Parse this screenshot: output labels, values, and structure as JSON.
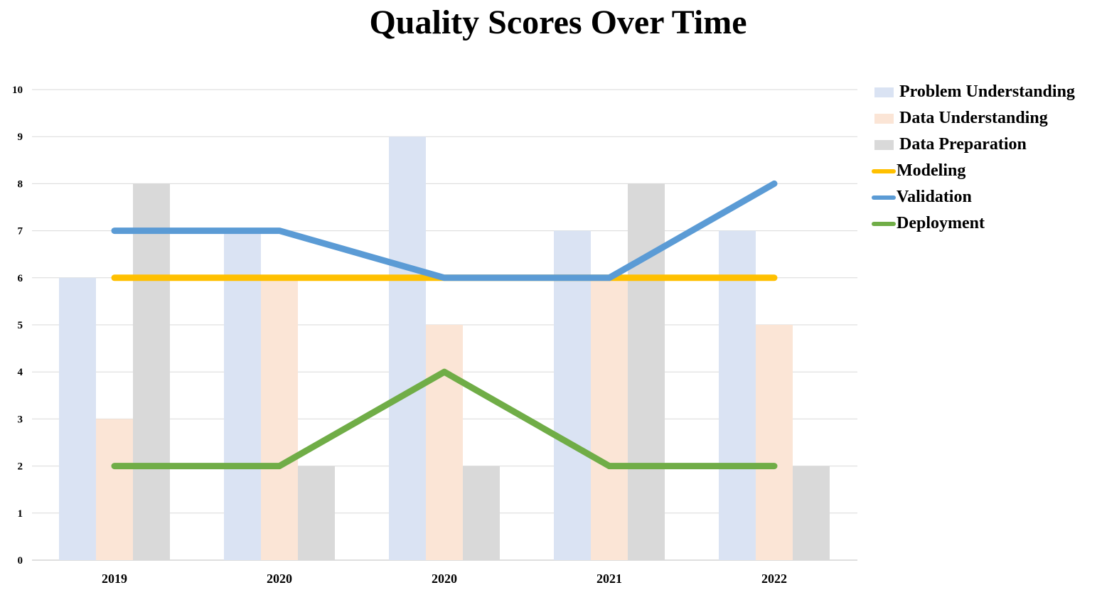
{
  "chart_data": {
    "type": "bar",
    "title": "Quality Scores Over Time",
    "xlabel": "",
    "ylabel": "",
    "categories": [
      "2019",
      "2020",
      "2020",
      "2021",
      "2022"
    ],
    "ylim": [
      0,
      10
    ],
    "yticks": [
      "0",
      "1",
      "2",
      "3",
      "4",
      "5",
      "6",
      "7",
      "8",
      "9",
      "10"
    ],
    "grid": true,
    "legend_position": "right",
    "series": [
      {
        "name": "Problem Understanding",
        "kind": "bar",
        "color": "#dae3f3",
        "values": [
          6,
          7,
          9,
          7,
          7
        ]
      },
      {
        "name": "Data Understanding",
        "kind": "bar",
        "color": "#fbe5d6",
        "values": [
          3,
          6,
          5,
          6,
          5
        ]
      },
      {
        "name": "Data Preparation",
        "kind": "bar",
        "color": "#d9d9d9",
        "values": [
          8,
          2,
          2,
          8,
          2
        ]
      },
      {
        "name": "Modeling",
        "kind": "line",
        "color": "#ffc000",
        "values": [
          6,
          6,
          6,
          6,
          6
        ]
      },
      {
        "name": "Validation",
        "kind": "line",
        "color": "#5b9bd5",
        "values": [
          7,
          7,
          6,
          6,
          8
        ]
      },
      {
        "name": "Deployment",
        "kind": "line",
        "color": "#70ad47",
        "values": [
          2,
          2,
          4,
          2,
          2
        ]
      }
    ]
  }
}
